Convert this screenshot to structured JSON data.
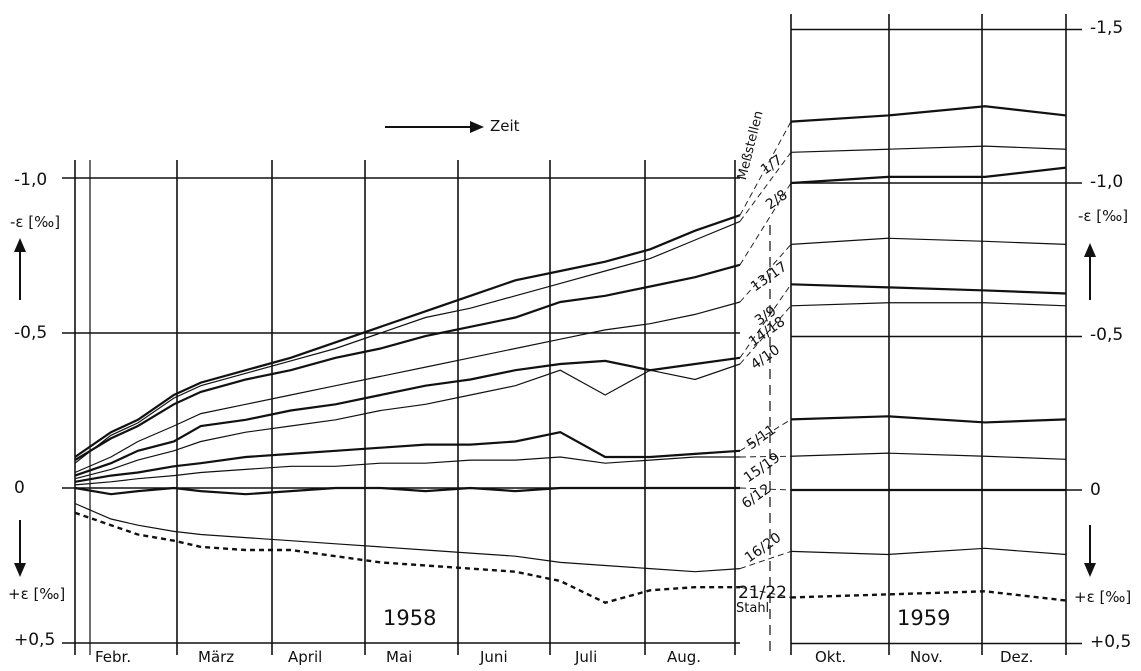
{
  "chart_data": {
    "type": "line",
    "time_label": "Zeit",
    "measurement_title": "Meßstellen",
    "y_axis_label_left_top": "-ε [‰]",
    "y_axis_label_left_bottom": "+ε [‰]",
    "y_axis_label_right_top": "-ε [‰]",
    "y_axis_label_right_bottom": "+ε [‰]",
    "y_ticks_left": [
      "-1,0",
      "-0,5",
      "0",
      "+0,5"
    ],
    "y_ticks_right": [
      "-1,5",
      "-1,0",
      "-0,5",
      "0",
      "+0,5"
    ],
    "y_tick_values_left": [
      -1.0,
      -0.5,
      0,
      0.5
    ],
    "y_tick_values_right": [
      -1.5,
      -1.0,
      -0.5,
      0,
      0.5
    ],
    "ylim": [
      0.5,
      -1.5
    ],
    "grid": true,
    "months_1958": [
      "Febr.",
      "März",
      "April",
      "Mai",
      "Juni",
      "Juli",
      "Aug."
    ],
    "months_1959": [
      "Okt.",
      "Nov.",
      "Dez."
    ],
    "years": [
      "1958",
      "1959"
    ],
    "x_1958": [
      0.6,
      1,
      1.3,
      1.7,
      2,
      2.5,
      3,
      3.5,
      4,
      4.5,
      5,
      5.5,
      6,
      6.5,
      7,
      7.5,
      8
    ],
    "x_1959": [
      8.6,
      9.8,
      11,
      12
    ],
    "series": [
      {
        "name": "1/7",
        "values_1958": [
          -0.1,
          -0.18,
          -0.22,
          -0.3,
          -0.34,
          -0.38,
          -0.42,
          -0.47,
          -0.52,
          -0.57,
          -0.62,
          -0.67,
          -0.7,
          -0.73,
          -0.77,
          -0.83,
          -0.88
        ],
        "values_1959": [
          -1.2,
          -1.22,
          -1.25,
          -1.22
        ]
      },
      {
        "name": "2/8",
        "values_1958": [
          -0.08,
          -0.17,
          -0.21,
          -0.29,
          -0.33,
          -0.37,
          -0.41,
          -0.45,
          -0.5,
          -0.55,
          -0.58,
          -0.62,
          -0.66,
          -0.7,
          -0.74,
          -0.8,
          -0.86
        ],
        "values_1959": [
          -1.1,
          -1.11,
          -1.12,
          -1.11
        ]
      },
      {
        "name": "13/17",
        "values_1958": [
          -0.09,
          -0.16,
          -0.2,
          -0.27,
          -0.31,
          -0.35,
          -0.38,
          -0.42,
          -0.45,
          -0.49,
          -0.52,
          -0.55,
          -0.6,
          -0.62,
          -0.65,
          -0.68,
          -0.72
        ],
        "values_1959": [
          -1.0,
          -1.02,
          -1.02,
          -1.05
        ]
      },
      {
        "name": "3/9",
        "values_1958": [
          -0.05,
          -0.1,
          -0.15,
          -0.2,
          -0.24,
          -0.27,
          -0.3,
          -0.33,
          -0.36,
          -0.39,
          -0.42,
          -0.45,
          -0.48,
          -0.51,
          -0.53,
          -0.56,
          -0.6
        ],
        "values_1959": [
          -0.8,
          -0.82,
          -0.81,
          -0.8
        ]
      },
      {
        "name": "14/18",
        "values_1958": [
          -0.04,
          -0.08,
          -0.12,
          -0.15,
          -0.2,
          -0.22,
          -0.25,
          -0.27,
          -0.3,
          -0.33,
          -0.35,
          -0.38,
          -0.4,
          -0.41,
          -0.38,
          -0.4,
          -0.42
        ],
        "values_1959": [
          -0.67,
          -0.66,
          -0.65,
          -0.64
        ]
      },
      {
        "name": "4/10",
        "values_1958": [
          -0.03,
          -0.06,
          -0.09,
          -0.12,
          -0.15,
          -0.18,
          -0.2,
          -0.22,
          -0.25,
          -0.27,
          -0.3,
          -0.33,
          -0.38,
          -0.3,
          -0.38,
          -0.35,
          -0.4
        ],
        "values_1959": [
          -0.6,
          -0.61,
          -0.61,
          -0.6
        ]
      },
      {
        "name": "5/11",
        "values_1958": [
          -0.02,
          -0.04,
          -0.05,
          -0.07,
          -0.08,
          -0.1,
          -0.11,
          -0.12,
          -0.13,
          -0.14,
          -0.14,
          -0.15,
          -0.18,
          -0.1,
          -0.1,
          -0.11,
          -0.12
        ],
        "values_1959": [
          -0.23,
          -0.24,
          -0.22,
          -0.23
        ]
      },
      {
        "name": "15/19",
        "values_1958": [
          -0.01,
          -0.02,
          -0.03,
          -0.04,
          -0.05,
          -0.06,
          -0.07,
          -0.07,
          -0.08,
          -0.08,
          -0.09,
          -0.09,
          -0.1,
          -0.08,
          -0.09,
          -0.1,
          -0.1
        ],
        "values_1959": [
          -0.11,
          -0.12,
          -0.11,
          -0.1
        ]
      },
      {
        "name": "6/12",
        "values_1958": [
          0.0,
          0.02,
          0.01,
          0.0,
          0.01,
          0.02,
          0.01,
          0.0,
          0.0,
          0.01,
          0.0,
          0.01,
          0.0,
          0.0,
          0.0,
          0.0,
          0.0
        ],
        "values_1959": [
          0.0,
          0.0,
          0.0,
          0.0
        ]
      },
      {
        "name": "16/20",
        "values_1958": [
          0.05,
          0.1,
          0.12,
          0.14,
          0.15,
          0.16,
          0.17,
          0.18,
          0.19,
          0.2,
          0.21,
          0.22,
          0.24,
          0.25,
          0.26,
          0.27,
          0.26
        ],
        "values_1959": [
          0.2,
          0.21,
          0.19,
          0.21
        ]
      },
      {
        "name": "21/22 Stahl",
        "dashed": true,
        "values_1958": [
          0.08,
          0.12,
          0.15,
          0.17,
          0.19,
          0.2,
          0.2,
          0.22,
          0.24,
          0.25,
          0.26,
          0.27,
          0.3,
          0.37,
          0.33,
          0.32,
          0.32
        ],
        "values_1959": [
          0.35,
          0.34,
          0.33,
          0.36
        ]
      }
    ]
  }
}
